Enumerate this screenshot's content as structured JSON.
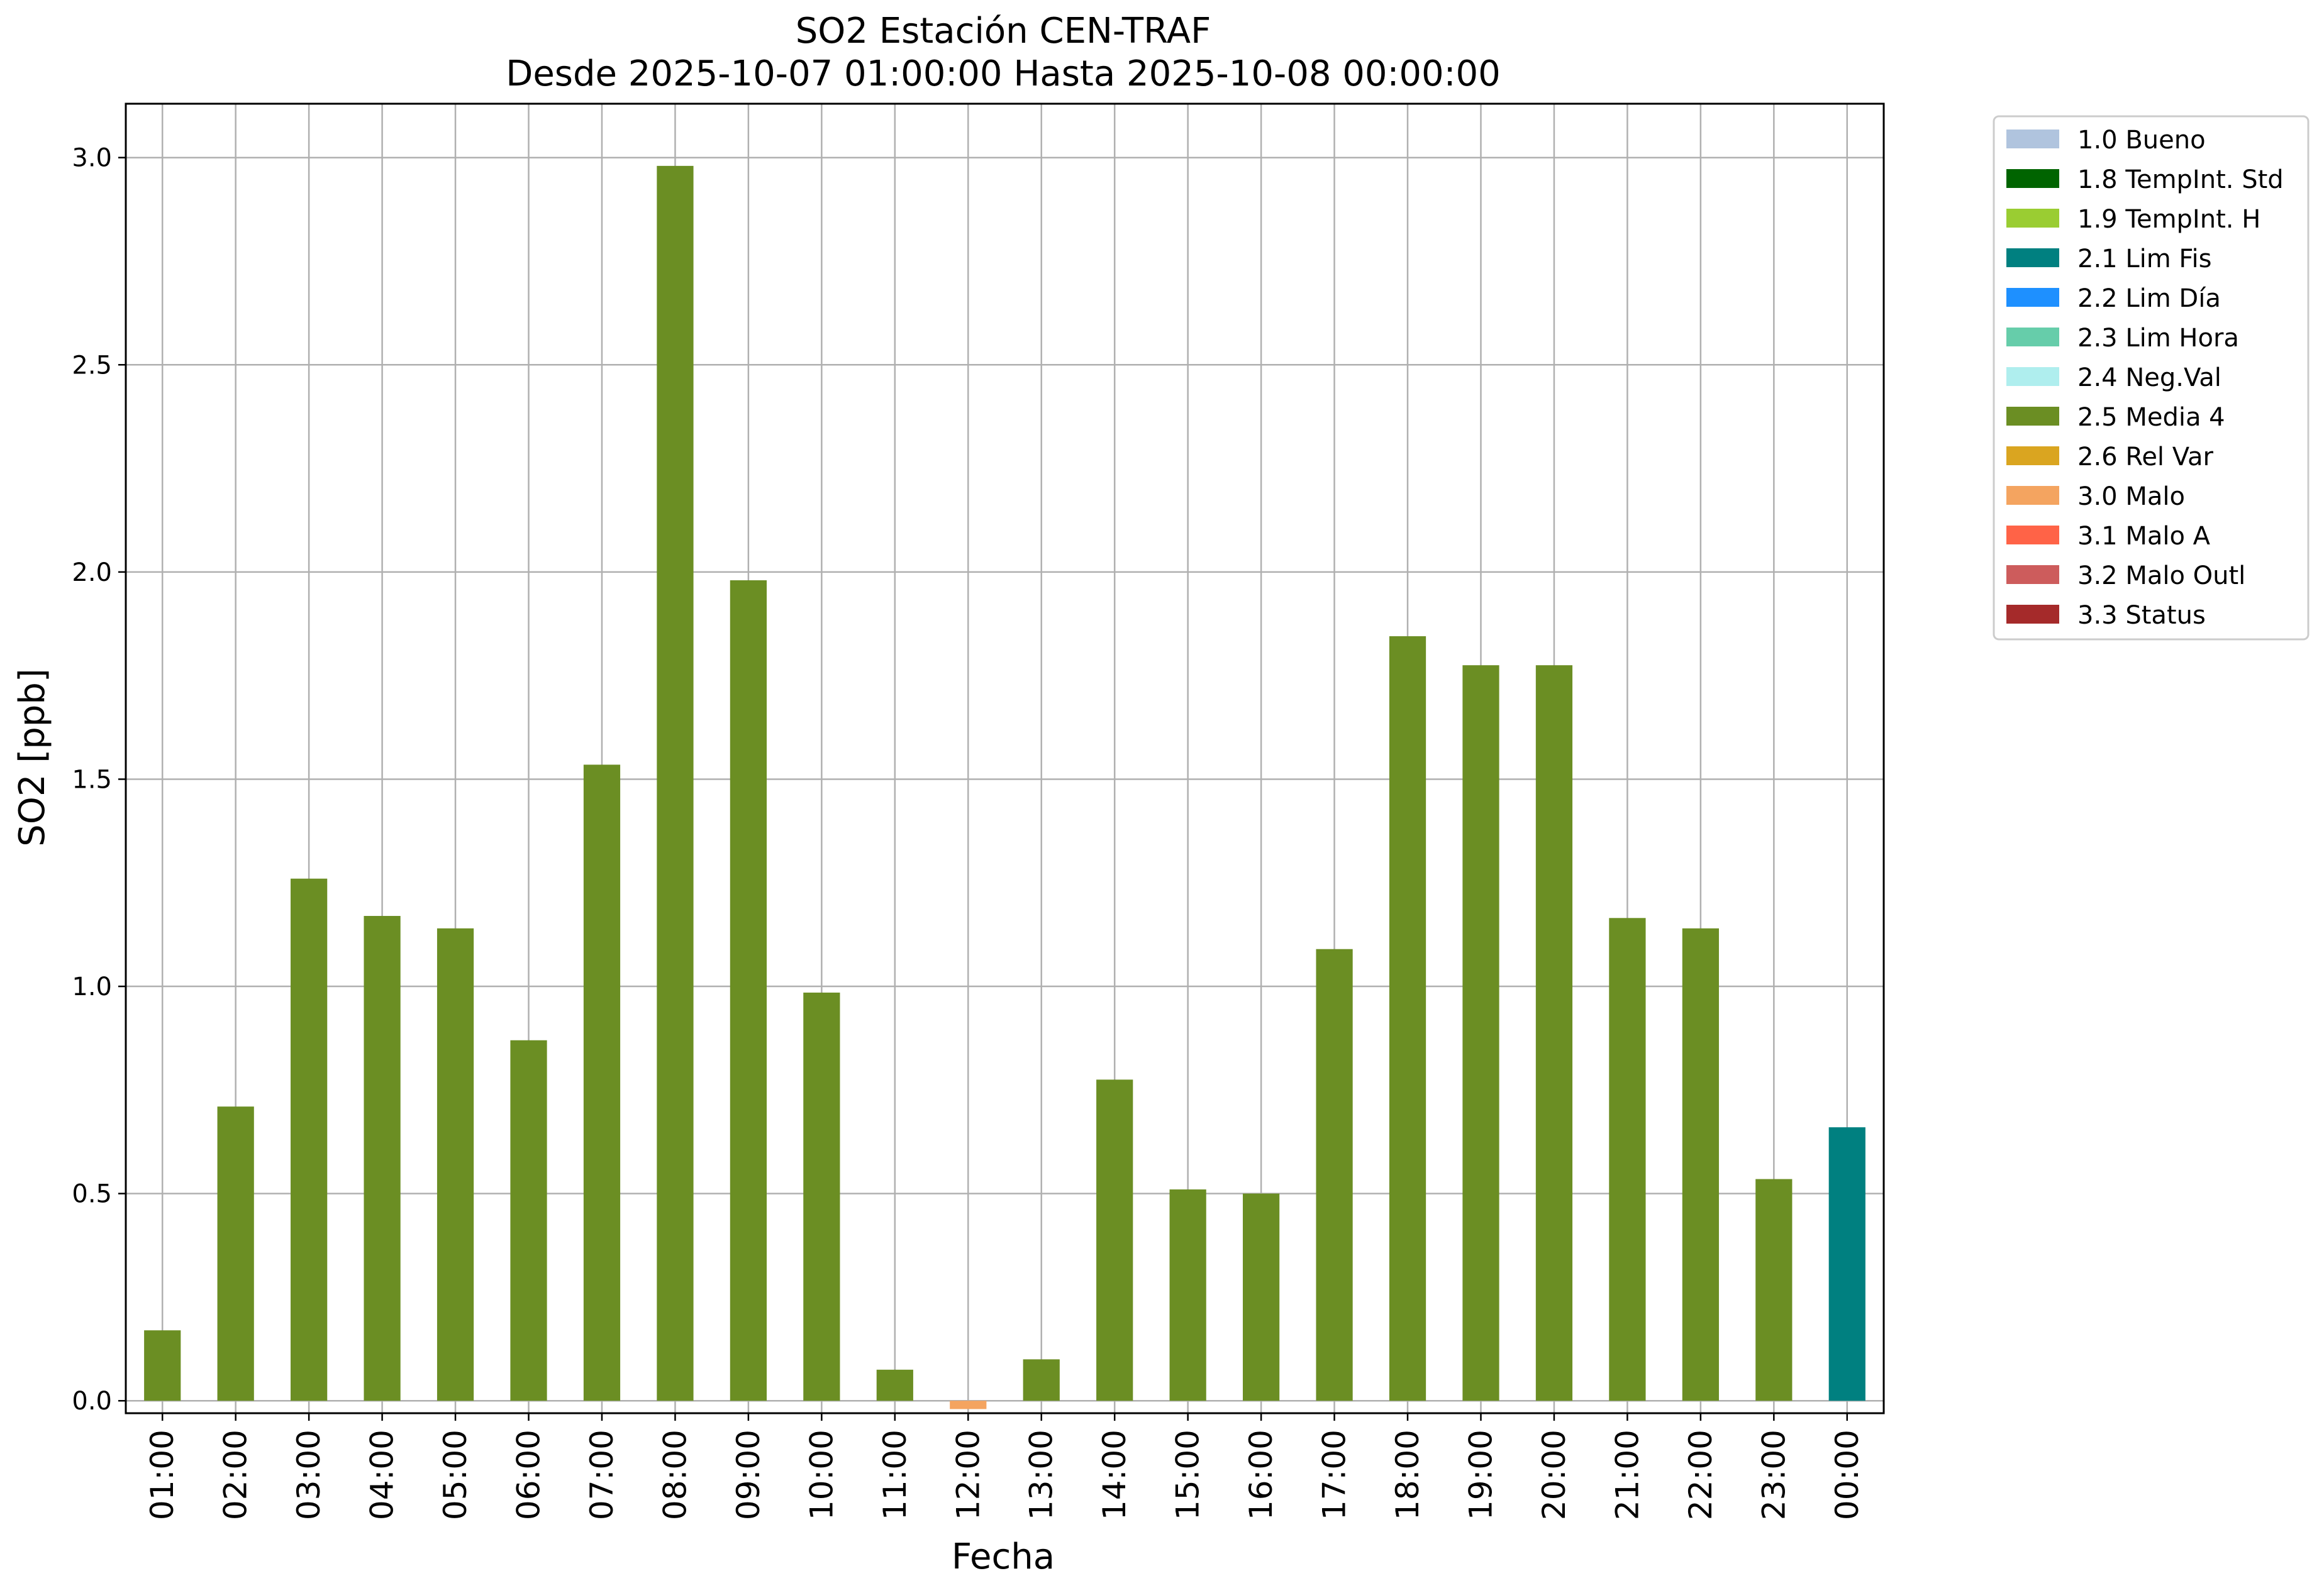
{
  "chart_data": {
    "type": "bar",
    "title": "SO2 Estación CEN-TRAF",
    "subtitle": "Desde 2025-10-07 01:00:00 Hasta 2025-10-08 00:00:00",
    "xlabel": "Fecha",
    "ylabel": "SO2 [ppb]",
    "ylim": [
      -0.03,
      3.13
    ],
    "yticks": [
      0.0,
      0.5,
      1.0,
      1.5,
      2.0,
      2.5,
      3.0
    ],
    "ytick_labels": [
      "0.0",
      "0.5",
      "1.0",
      "1.5",
      "2.0",
      "2.5",
      "3.0"
    ],
    "grid": true,
    "legend_position": "outside-right-top",
    "categories": [
      "01:00",
      "02:00",
      "03:00",
      "04:00",
      "05:00",
      "06:00",
      "07:00",
      "08:00",
      "09:00",
      "10:00",
      "11:00",
      "12:00",
      "13:00",
      "14:00",
      "15:00",
      "16:00",
      "17:00",
      "18:00",
      "19:00",
      "20:00",
      "21:00",
      "22:00",
      "23:00",
      "00:00"
    ],
    "values": [
      0.17,
      0.71,
      1.26,
      1.17,
      1.14,
      0.87,
      1.535,
      2.98,
      1.98,
      0.985,
      0.075,
      -0.02,
      0.1,
      0.775,
      0.51,
      0.5,
      1.09,
      1.845,
      1.775,
      1.775,
      1.165,
      1.14,
      0.535,
      0.66
    ],
    "flags": [
      "2.5 Media 4",
      "2.5 Media 4",
      "2.5 Media 4",
      "2.5 Media 4",
      "2.5 Media 4",
      "2.5 Media 4",
      "2.5 Media 4",
      "2.5 Media 4",
      "2.5 Media 4",
      "2.5 Media 4",
      "2.5 Media 4",
      "3.0 Malo",
      "2.5 Media 4",
      "2.5 Media 4",
      "2.5 Media 4",
      "2.5 Media 4",
      "2.5 Media 4",
      "2.5 Media 4",
      "2.5 Media 4",
      "2.5 Media 4",
      "2.5 Media 4",
      "2.5 Media 4",
      "2.5 Media 4",
      "2.1 Lim Fis"
    ],
    "legend": [
      {
        "label": "1.0 Bueno",
        "color": "#b0c4de"
      },
      {
        "label": "1.8 TempInt. Std",
        "color": "#006400"
      },
      {
        "label": "1.9 TempInt. H",
        "color": "#9acd32"
      },
      {
        "label": "2.1 Lim Fis",
        "color": "#008080"
      },
      {
        "label": "2.2 Lim Día",
        "color": "#1e90ff"
      },
      {
        "label": "2.3 Lim Hora",
        "color": "#66cdaa"
      },
      {
        "label": "2.4 Neg.Val",
        "color": "#afeeee"
      },
      {
        "label": "2.5 Media 4",
        "color": "#6b8e23"
      },
      {
        "label": "2.6 Rel Var",
        "color": "#daa520"
      },
      {
        "label": "3.0 Malo",
        "color": "#f4a460"
      },
      {
        "label": "3.1 Malo A",
        "color": "#ff6347"
      },
      {
        "label": "3.2 Malo Outl",
        "color": "#cd5c5c"
      },
      {
        "label": "3.3 Status",
        "color": "#a52a2a"
      }
    ]
  }
}
